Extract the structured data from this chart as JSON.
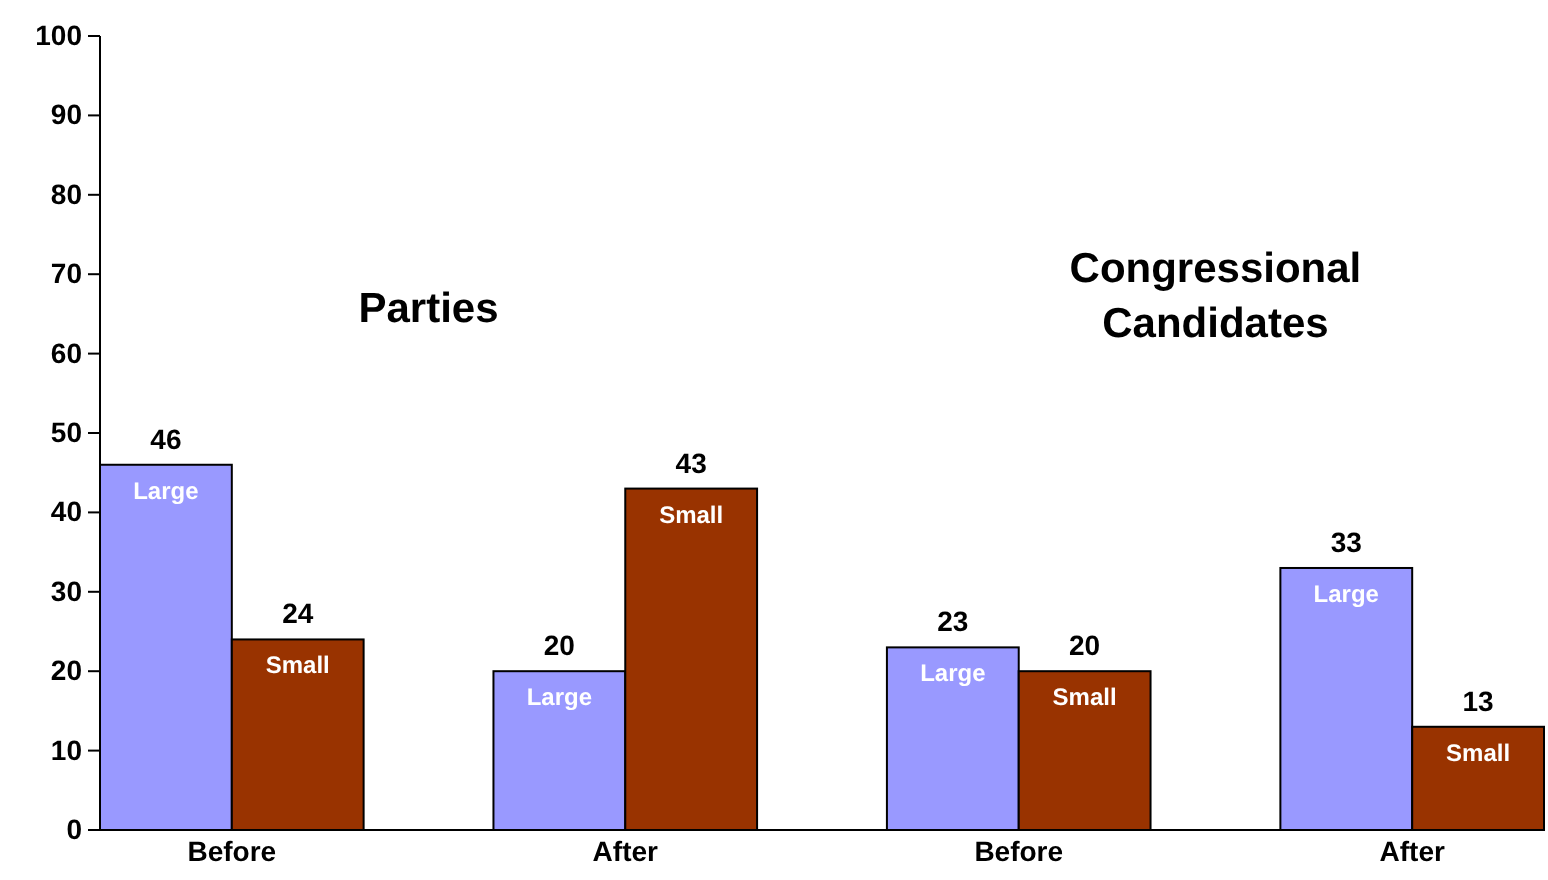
{
  "chart_data": {
    "type": "bar",
    "categories": [
      "Before",
      "After",
      "Before",
      "After"
    ],
    "series": [
      {
        "name": "Large",
        "color": "#9999ff",
        "values": [
          46,
          20,
          23,
          33
        ]
      },
      {
        "name": "Small",
        "color": "#993300",
        "values": [
          24,
          43,
          20,
          13
        ]
      }
    ],
    "ylim": [
      0,
      100
    ],
    "yticks": [
      0,
      10,
      20,
      30,
      40,
      50,
      60,
      70,
      80,
      90,
      100
    ],
    "data_labels": true,
    "grid": false,
    "annotations": [
      "Parties",
      "Congressional Candidates"
    ]
  }
}
